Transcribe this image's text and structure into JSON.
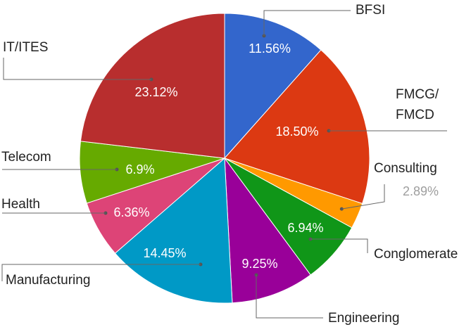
{
  "chart_data": {
    "type": "pie",
    "title": "",
    "legend": "none",
    "slices": [
      {
        "label": "BFSI",
        "value": 11.56,
        "display": "11.56%",
        "color": "#3366cc"
      },
      {
        "label": "FMCG/\nFMCD",
        "value": 18.5,
        "display": "18.50%",
        "color": "#dc3912"
      },
      {
        "label": "Consulting",
        "value": 2.89,
        "display": "2.89%",
        "color": "#ff9900"
      },
      {
        "label": "Conglomerate",
        "value": 6.94,
        "display": "6.94%",
        "color": "#109618"
      },
      {
        "label": "Engineering",
        "value": 9.25,
        "display": "9.25%",
        "color": "#990099"
      },
      {
        "label": "Manufacturing",
        "value": 14.45,
        "display": "14.45%",
        "color": "#0099c6"
      },
      {
        "label": "Health",
        "value": 6.36,
        "display": "6.36%",
        "color": "#dd4477"
      },
      {
        "label": "Telecom",
        "value": 6.9,
        "display": "6.9%",
        "color": "#66aa00"
      },
      {
        "label": "IT/ITES",
        "value": 23.12,
        "display": "23.12%",
        "color": "#b82e2e"
      }
    ]
  }
}
